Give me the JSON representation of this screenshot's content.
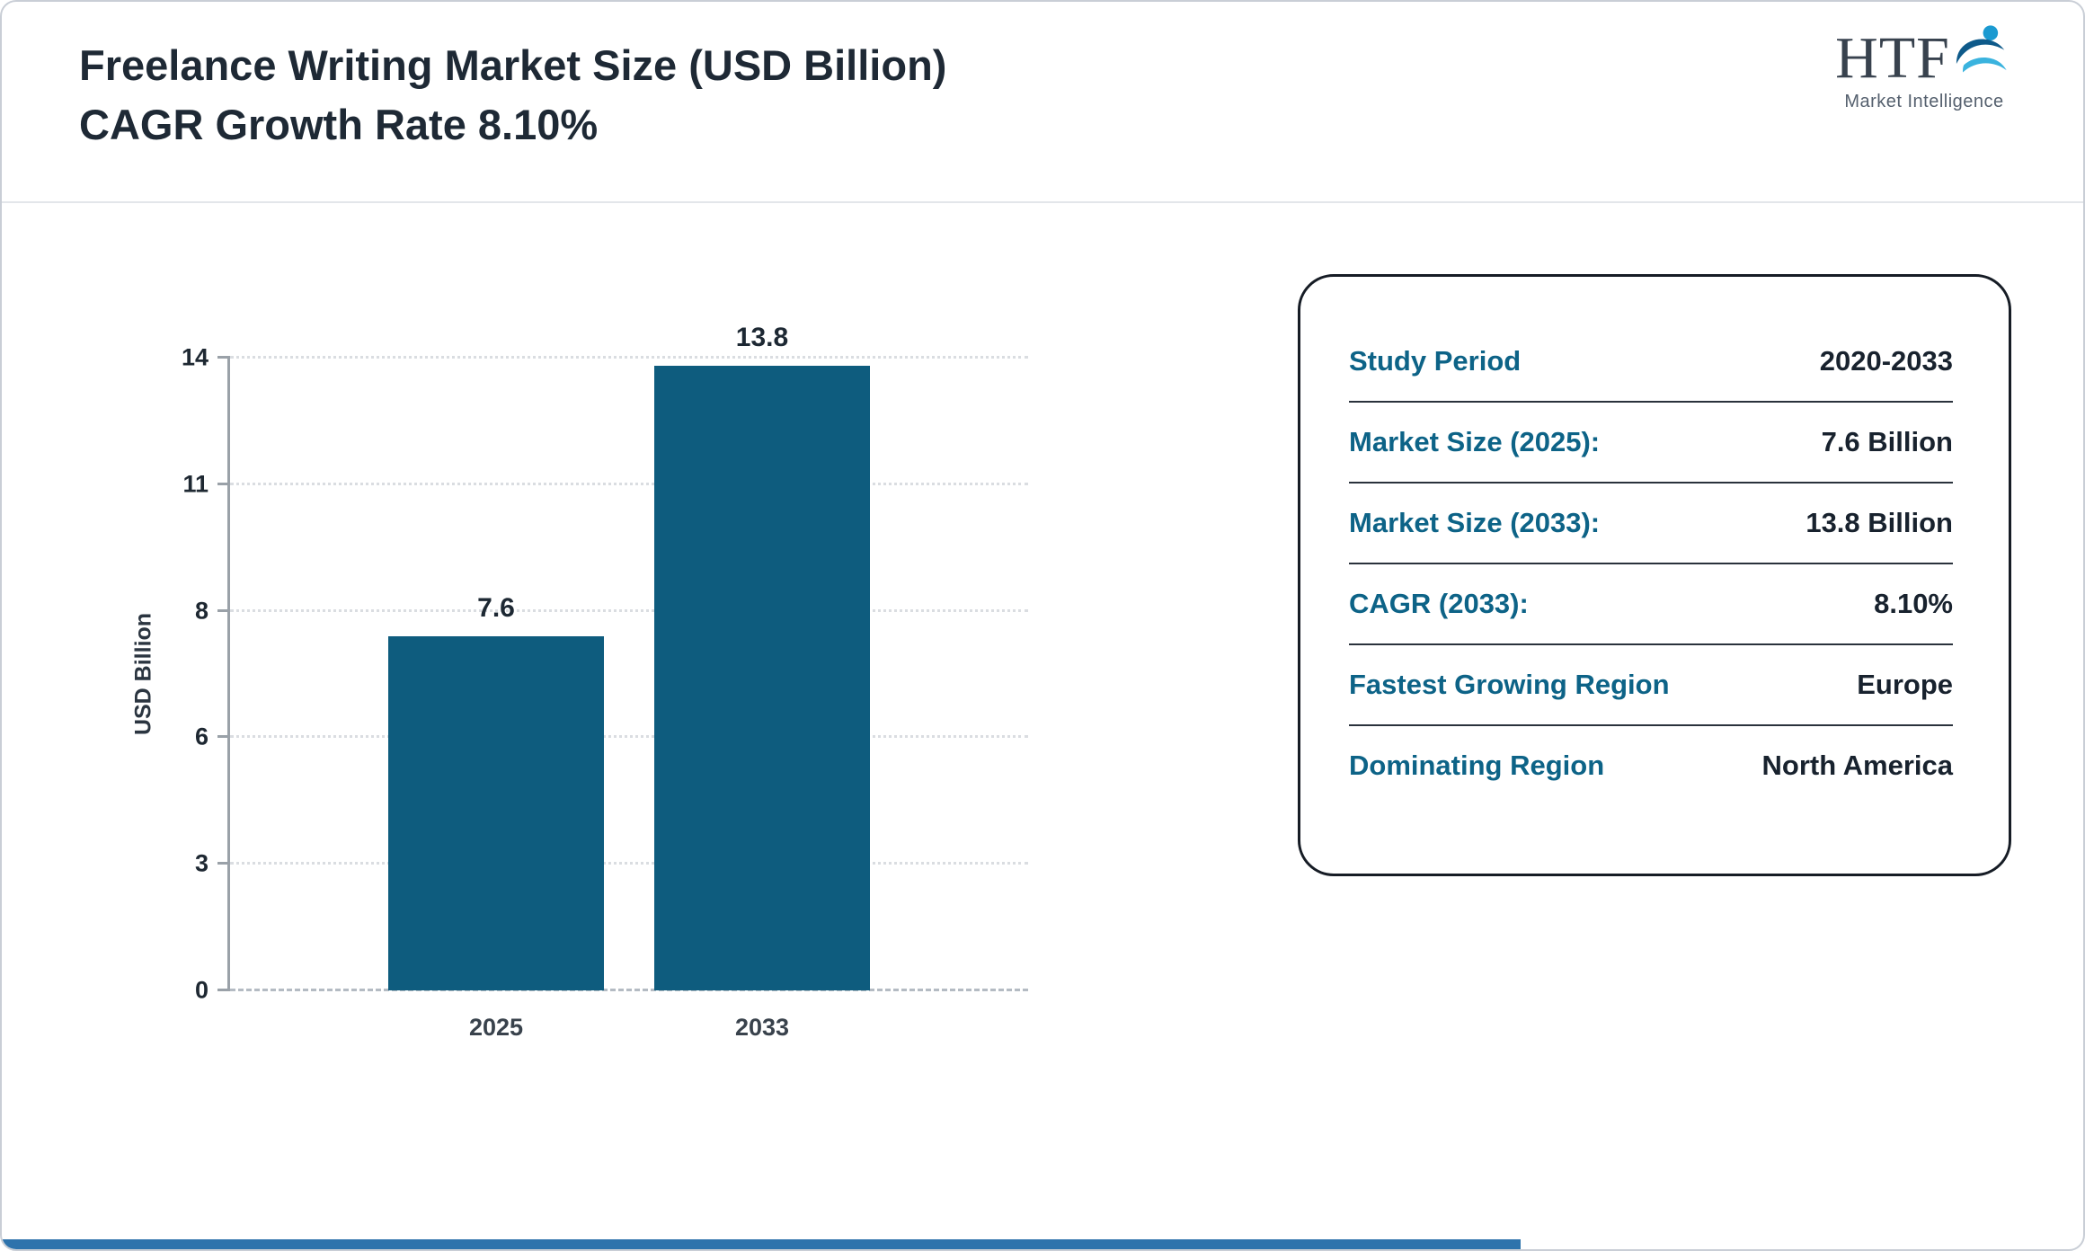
{
  "header": {
    "title_line1": "Freelance Writing Market Size (USD Billion)",
    "title_line2": "CAGR Growth Rate 8.10%"
  },
  "logo": {
    "text": "HTF",
    "subtext": "Market Intelligence"
  },
  "chart_data": {
    "type": "bar",
    "title": "Freelance Writing Market Size (USD Billion), CAGR Growth Rate 8.10%",
    "categories": [
      "2025",
      "2033"
    ],
    "values": [
      7.6,
      13.8
    ],
    "value_labels": [
      "7.6",
      "13.8"
    ],
    "xlabel": "",
    "ylabel": "USD Billion",
    "yticks": [
      0,
      3,
      6,
      8,
      11,
      14
    ],
    "ylim": [
      0,
      14
    ],
    "grid": "dotted-horizontal",
    "legend": "none",
    "bar_color": "#0e5c7e"
  },
  "info_panel": {
    "rows": [
      {
        "label": "Study Period",
        "value": "2020-2033"
      },
      {
        "label": "Market Size (2025):",
        "value": "7.6 Billion"
      },
      {
        "label": "Market Size (2033):",
        "value": "13.8 Billion"
      },
      {
        "label": "CAGR (2033):",
        "value": "8.10%"
      },
      {
        "label": "Fastest Growing Region",
        "value": "Europe"
      },
      {
        "label": "Dominating Region",
        "value": "North America"
      }
    ]
  },
  "colors": {
    "bar": "#0e5c7e",
    "accent_label": "#0d6387",
    "title_text": "#1e2935",
    "footer_strip": "#2e73ac"
  }
}
